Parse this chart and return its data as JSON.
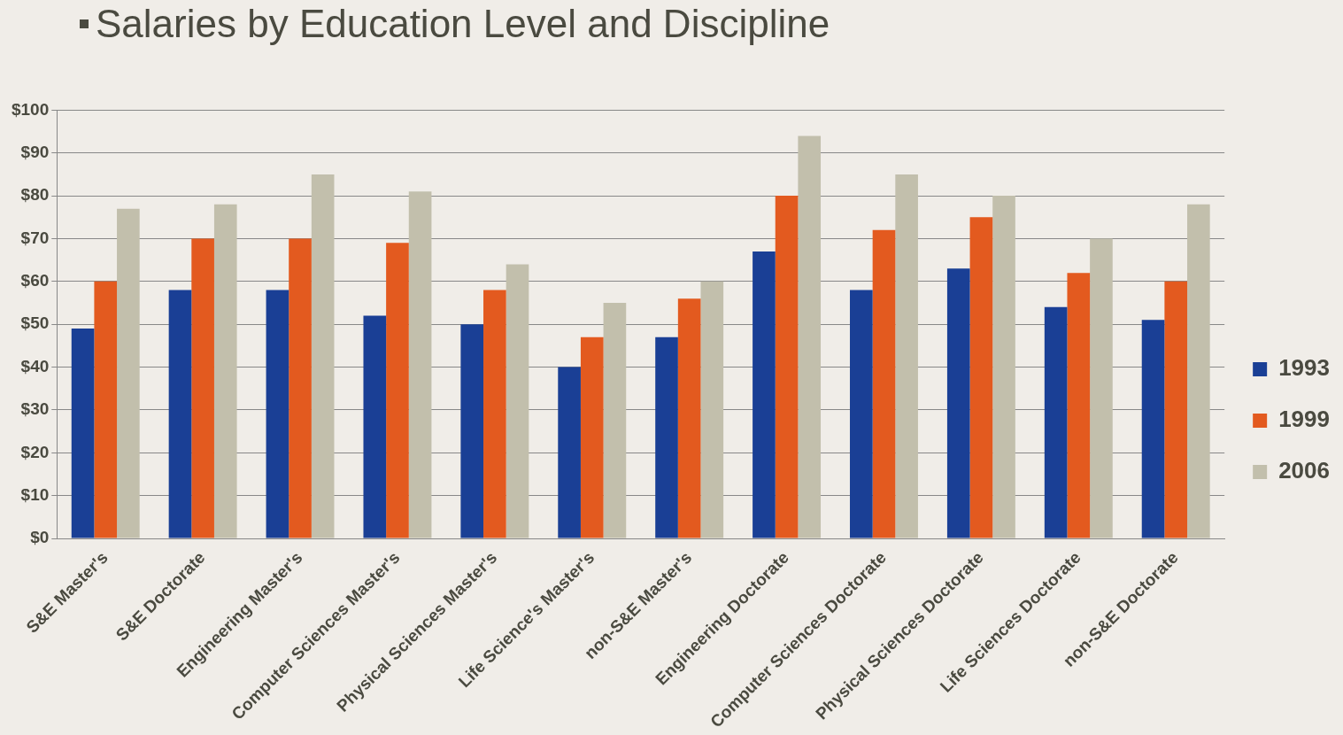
{
  "chart_data": {
    "type": "bar",
    "title": "Salaries by Education Level and Discipline",
    "categories": [
      "S&E Master's",
      "S&E Doctorate",
      "Engineering Master's",
      "Computer Sciences Master's",
      "Physical Sciences Master's",
      "Life Science's Master's",
      "non-S&E Master's",
      "Engineering Doctorate",
      "Computer Sciences Doctorate",
      "Physical Sciences Doctorate",
      "Life Sciences Doctorate",
      "non-S&E Doctorate"
    ],
    "series": [
      {
        "name": "1993",
        "color": "#1a3f95",
        "values": [
          49,
          58,
          58,
          52,
          50,
          40,
          47,
          67,
          58,
          63,
          54,
          51
        ]
      },
      {
        "name": "1999",
        "color": "#e35a1f",
        "values": [
          60,
          70,
          70,
          69,
          58,
          47,
          56,
          80,
          72,
          75,
          62,
          60
        ]
      },
      {
        "name": "2006",
        "color": "#c2bfac",
        "values": [
          77,
          78,
          85,
          81,
          64,
          55,
          60,
          94,
          85,
          80,
          70,
          78
        ]
      }
    ],
    "ylim": [
      0,
      100
    ],
    "yticks": [
      {
        "value": 0,
        "label": "$0"
      },
      {
        "value": 10,
        "label": "$10"
      },
      {
        "value": 20,
        "label": "$20"
      },
      {
        "value": 30,
        "label": "$30"
      },
      {
        "value": 40,
        "label": "$40"
      },
      {
        "value": 50,
        "label": "$50"
      },
      {
        "value": 60,
        "label": "$60"
      },
      {
        "value": 70,
        "label": "$70"
      },
      {
        "value": 80,
        "label": "$80"
      },
      {
        "value": 90,
        "label": "$90"
      },
      {
        "value": 100,
        "label": "$100"
      }
    ],
    "grid": "y",
    "legend": "right"
  }
}
